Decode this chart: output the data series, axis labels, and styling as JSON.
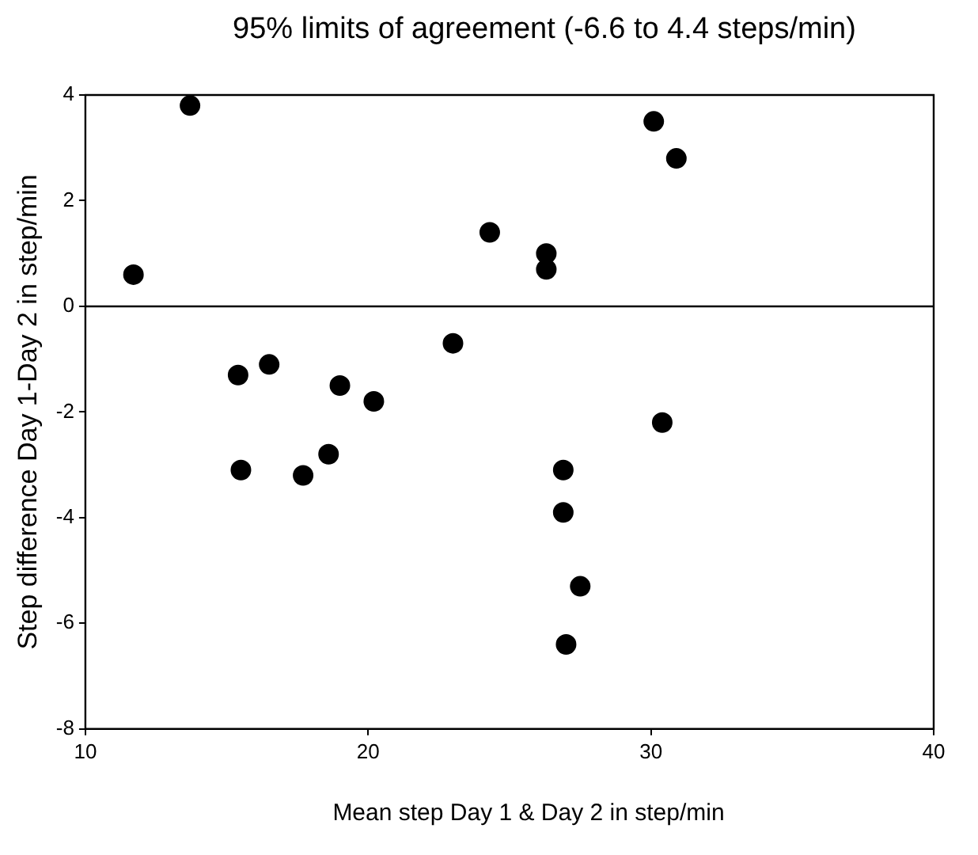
{
  "chart_data": {
    "type": "scatter",
    "title": "95% limits of agreement (-6.6 to 4.4 steps/min)",
    "xlabel": "Mean step Day 1 & Day 2 in step/min",
    "ylabel": "Step difference Day 1-Day 2 in step/min",
    "x": [
      11.7,
      13.7,
      24.3,
      15.4,
      16.5,
      19.0,
      20.2,
      23.0,
      15.5,
      17.7,
      18.6,
      30.1,
      30.9,
      26.3,
      26.3,
      30.4,
      26.9,
      26.9,
      27.5,
      27.0
    ],
    "series": [
      {
        "color": "#000000",
        "values": [
          0.6,
          3.8,
          1.4,
          -1.3,
          -1.1,
          -1.5,
          -1.8,
          -0.7,
          -3.1,
          -3.2,
          -2.8,
          3.5,
          2.8,
          1.0,
          0.7,
          -2.2,
          -3.1,
          -3.9,
          -5.3,
          -6.4
        ]
      }
    ],
    "xlim": [
      10,
      40
    ],
    "xticks": [
      10,
      20,
      30,
      40
    ],
    "ylim": [
      -8,
      4
    ],
    "yticks": [
      4,
      2,
      0,
      -2,
      -4,
      -6,
      -8
    ],
    "ref_lines": [
      {
        "axis": "y",
        "value": 0,
        "color": "#000000"
      }
    ],
    "grid": false,
    "legend": false,
    "marker": "circle"
  }
}
